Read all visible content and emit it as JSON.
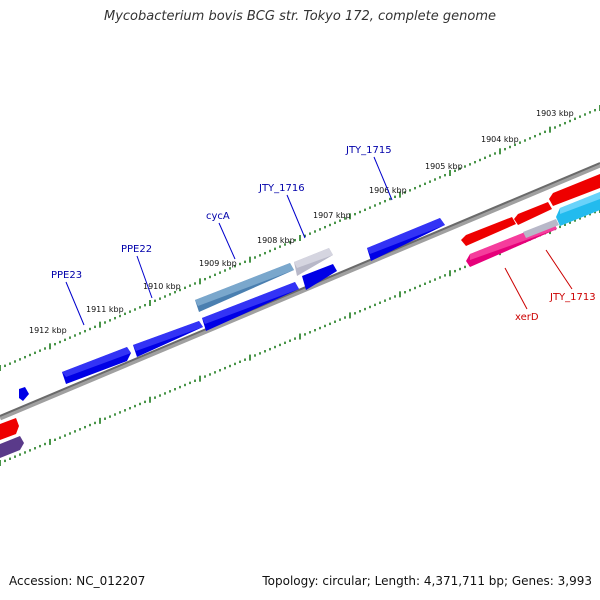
{
  "title": "Mycobacterium bovis BCG str. Tokyo 172, complete genome",
  "footer": {
    "accession": "Accession: NC_012207",
    "summary": "Topology: circular; Length: 4,371,711 bp; Genes: 3,993"
  },
  "colors": {
    "forward_gene": "#0000e6",
    "forward_highlight": "#4a7fb0",
    "pseudo_gene": "#b8b8c8",
    "reverse_gene": "#ee0000",
    "reverse_pink": "#e6007a",
    "reverse_cyan": "#22bbee",
    "reverse_purple": "#5a3a8a",
    "backbone": "#808080",
    "tick": "#1a7a1a",
    "forward_label": "#0000aa",
    "reverse_label": "#cc0000"
  },
  "scale_ticks": [
    {
      "label": "1903 kbp"
    },
    {
      "label": "1904 kbp"
    },
    {
      "label": "1905 kbp"
    },
    {
      "label": "1906 kbp"
    },
    {
      "label": "1907 kbp"
    },
    {
      "label": "1908 kbp"
    },
    {
      "label": "1909 kbp"
    },
    {
      "label": "1910 kbp"
    },
    {
      "label": "1911 kbp"
    },
    {
      "label": "1912 kbp"
    }
  ],
  "gene_labels": [
    {
      "text": "JTY_1715",
      "strand": "forward"
    },
    {
      "text": "JTY_1716",
      "strand": "forward"
    },
    {
      "text": "cycA",
      "strand": "forward"
    },
    {
      "text": "PPE22",
      "strand": "forward"
    },
    {
      "text": "PPE23",
      "strand": "forward"
    },
    {
      "text": "JTY_1713",
      "strand": "reverse"
    },
    {
      "text": "xerD",
      "strand": "reverse"
    }
  ]
}
